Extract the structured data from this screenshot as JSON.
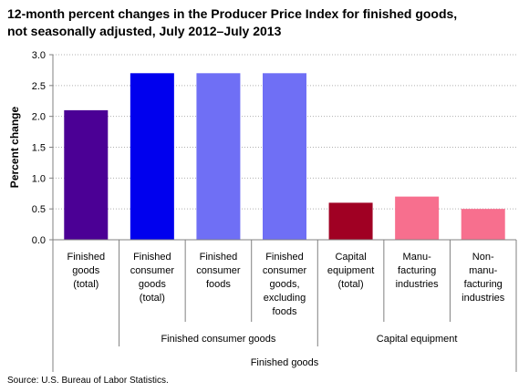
{
  "title_line1": "12-month percent changes in the Producer Price Index for finished goods,",
  "title_line2": "not seasonally adjusted, July 2012–July 2013",
  "source": "Source: U.S. Bureau of Labor Statistics.",
  "chart_data": {
    "type": "bar",
    "ylabel": "Percent change",
    "ylim": [
      0,
      3.0
    ],
    "yticks": [
      "0.0",
      "0.5",
      "1.0",
      "1.5",
      "2.0",
      "2.5",
      "3.0"
    ],
    "grid": "horizontal dotted",
    "categories": [
      [
        "Finished",
        "goods",
        "(total)"
      ],
      [
        "Finished",
        "consumer",
        "goods",
        "(total)"
      ],
      [
        "Finished",
        "consumer",
        "foods"
      ],
      [
        "Finished",
        "consumer",
        "goods,",
        "excluding",
        "foods"
      ],
      [
        "Capital",
        "equipment",
        "(total)"
      ],
      [
        "Manu-",
        "facturing",
        "industries"
      ],
      [
        "Non-",
        "manu-",
        "facturing",
        "industries"
      ]
    ],
    "values": [
      2.1,
      2.7,
      2.7,
      2.7,
      0.6,
      0.7,
      0.5
    ],
    "colors": [
      "#4b0095",
      "#0000ee",
      "#6f6ff5",
      "#6f6ff5",
      "#a00023",
      "#f76f8e",
      "#f76f8e"
    ],
    "group_labels": {
      "consumer": "Finished consumer goods",
      "capital": "Capital equipment",
      "overall": "Finished goods"
    }
  }
}
